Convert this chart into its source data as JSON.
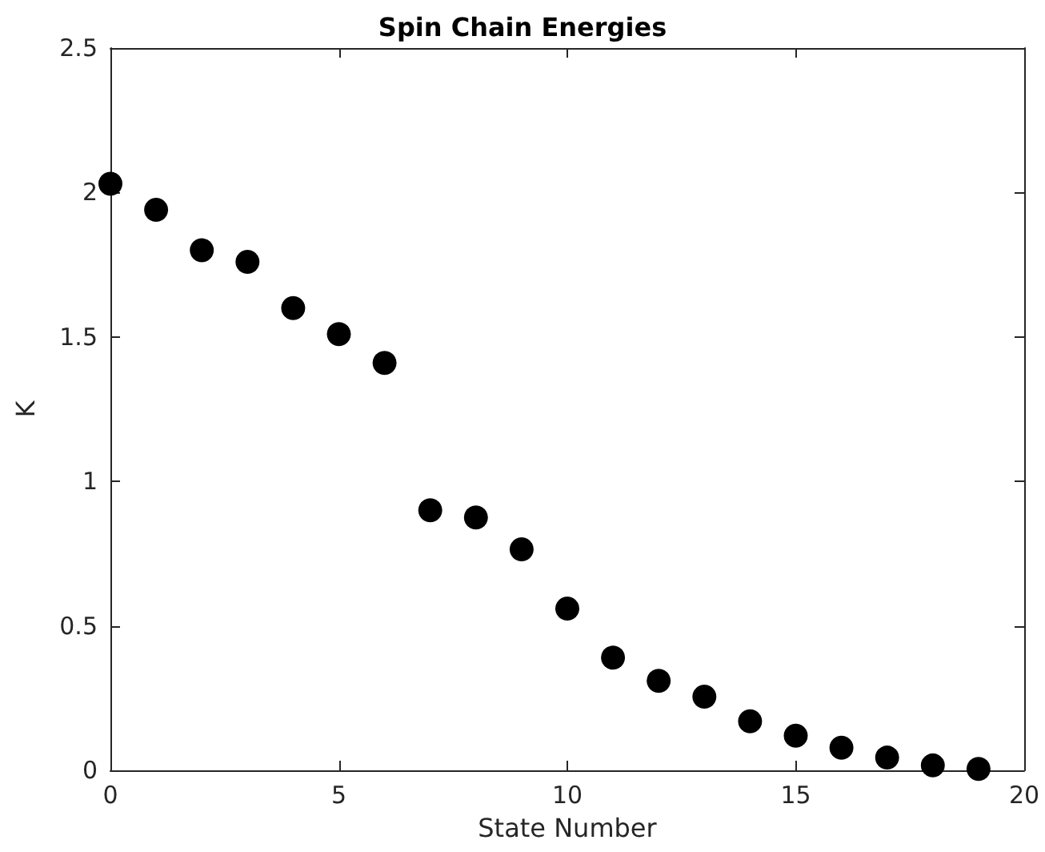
{
  "chart_data": {
    "type": "scatter",
    "title": "Spin Chain Energies",
    "xlabel": "State Number",
    "ylabel": "K",
    "x": [
      0,
      1,
      2,
      3,
      4,
      5,
      6,
      7,
      8,
      9,
      10,
      11,
      12,
      13,
      14,
      15,
      16,
      17,
      18,
      19
    ],
    "series": [
      {
        "color": "#000000",
        "values": [
          2.03,
          1.94,
          1.8,
          1.76,
          1.6,
          1.51,
          1.41,
          0.9,
          0.875,
          0.765,
          0.56,
          0.39,
          0.31,
          0.255,
          0.17,
          0.12,
          0.078,
          0.044,
          0.017,
          0.005
        ]
      }
    ],
    "xlim": [
      0,
      20
    ],
    "xticks": [
      0,
      5,
      10,
      15,
      20
    ],
    "ylim": [
      0,
      2.5
    ],
    "yticks": [
      0,
      0.5,
      1,
      1.5,
      2,
      2.5
    ],
    "marker": "circle",
    "grid": false
  }
}
